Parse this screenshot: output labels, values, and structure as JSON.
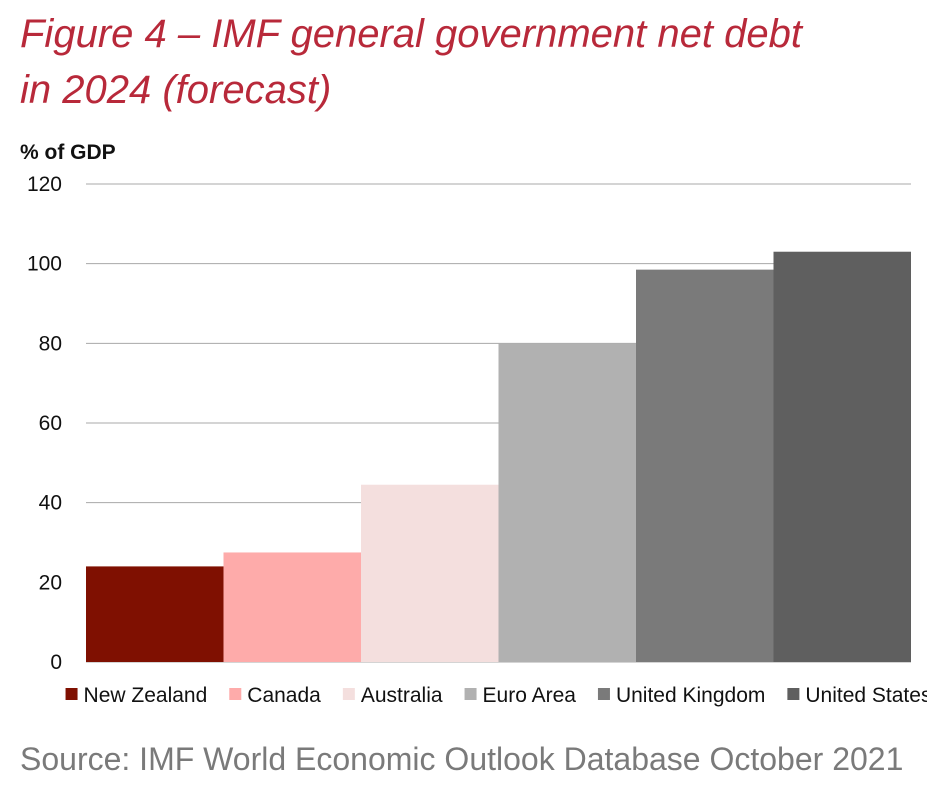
{
  "title_line1": "Figure 4 – IMF general government net debt",
  "title_line2": "in 2024 (forecast)",
  "source": "Source: IMF World Economic Outlook Database October 2021",
  "chart_data": {
    "type": "bar",
    "title": "Figure 4 – IMF general government net debt in 2024 (forecast)",
    "ylabel": "% of GDP",
    "xlabel": "",
    "categories": [
      "New Zealand",
      "Canada",
      "Australia",
      "Euro Area",
      "United Kingdom",
      "United States"
    ],
    "values": [
      24,
      27.5,
      44.5,
      80,
      98.5,
      103
    ],
    "colors": [
      "#7f1001",
      "#feabaa",
      "#f4dfde",
      "#b1b1b1",
      "#7a7a7a",
      "#5f5f5f"
    ],
    "ylim": [
      0,
      120
    ],
    "yticks": [
      0,
      20,
      40,
      60,
      80,
      100,
      120
    ],
    "grid": true,
    "legend_position": "bottom"
  }
}
